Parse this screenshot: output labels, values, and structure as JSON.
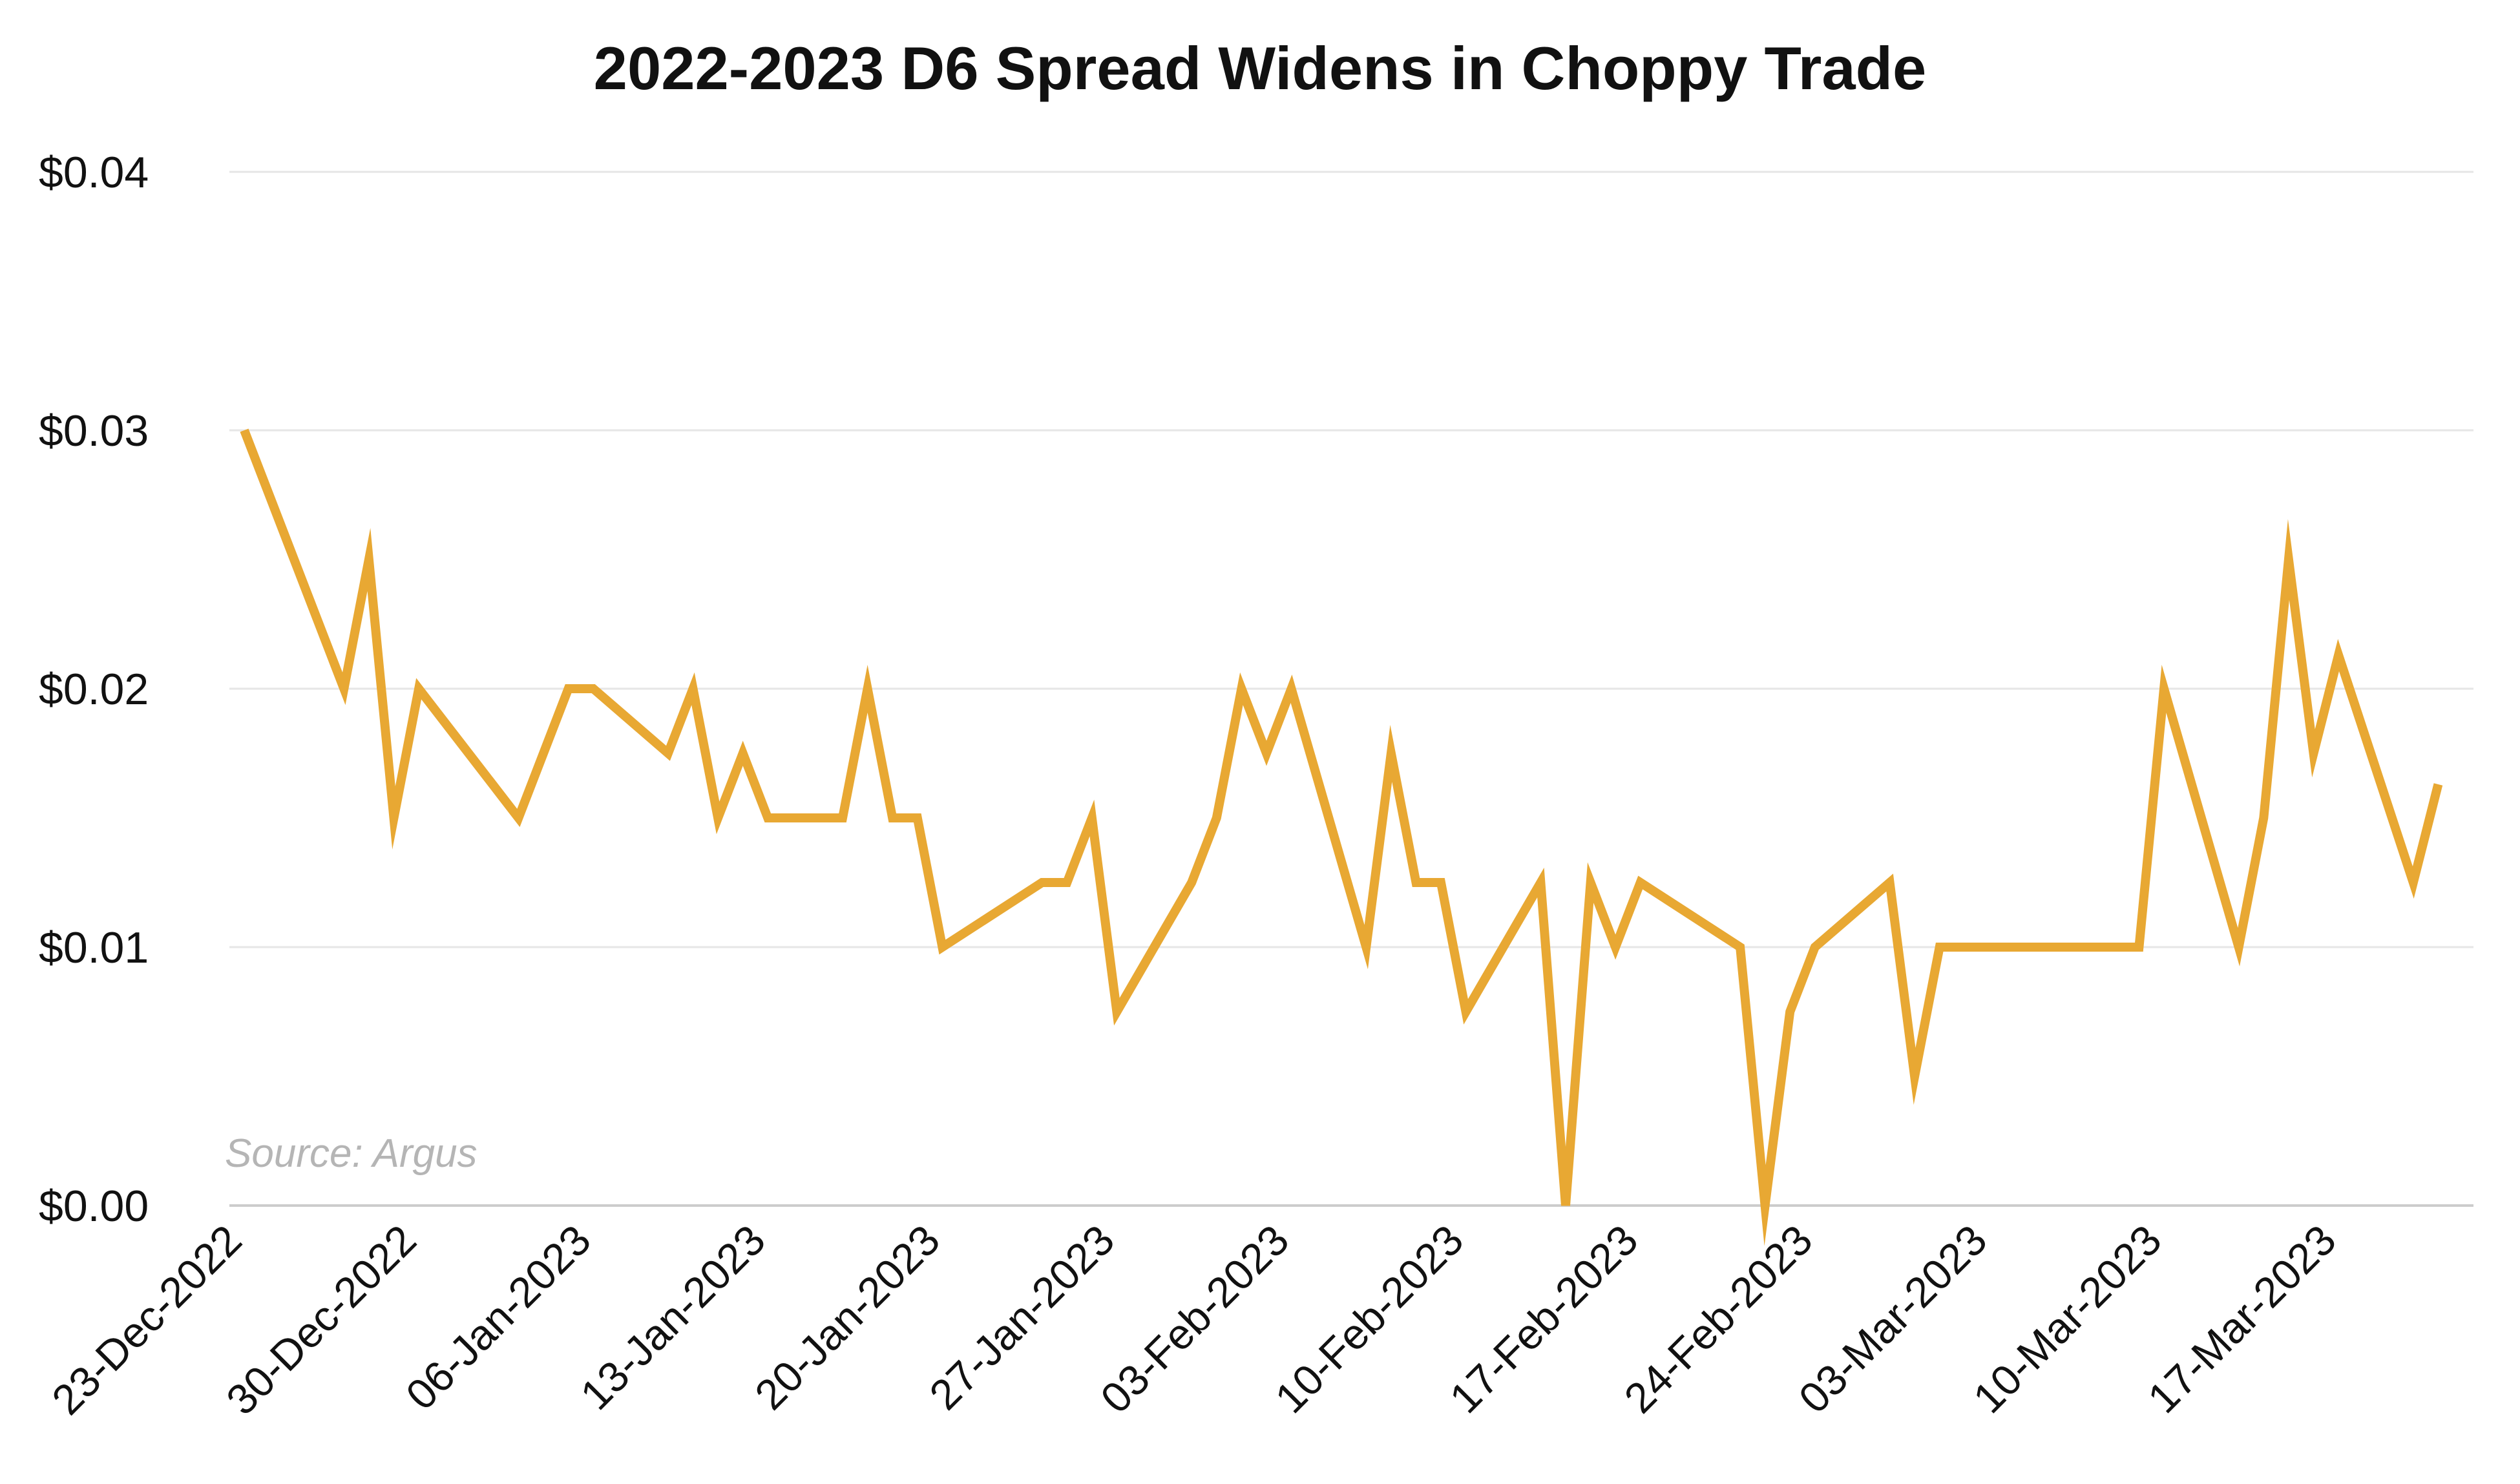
{
  "chart_data": {
    "type": "line",
    "title": "2022-2023 D6 Spread Widens in Choppy Trade",
    "xlabel": "",
    "ylabel": "",
    "source": "Source: Argus",
    "ylim": [
      0,
      0.04
    ],
    "y_ticks": [
      "$0.04",
      "$0.03",
      "$0.02",
      "$0.01",
      "$0.00"
    ],
    "y_tick_values": [
      0.04,
      0.03,
      0.02,
      0.01,
      0.0
    ],
    "x_tick_labels": [
      "23-Dec-2022",
      "30-Dec-2022",
      "06-Jan-2023",
      "13-Jan-2023",
      "20-Jan-2023",
      "27-Jan-2023",
      "03-Feb-2023",
      "10-Feb-2023",
      "17-Feb-2023",
      "24-Feb-2023",
      "03-Mar-2023",
      "10-Mar-2023",
      "17-Mar-2023"
    ],
    "x_tick_dates": [
      "2022-12-23",
      "2022-12-30",
      "2023-01-06",
      "2023-01-13",
      "2023-01-20",
      "2023-01-27",
      "2023-02-03",
      "2023-02-10",
      "2023-02-17",
      "2023-02-24",
      "2023-03-03",
      "2023-03-10",
      "2023-03-17"
    ],
    "xlim": [
      "2022-12-23",
      "2023-03-22"
    ],
    "grid": true,
    "colors": {
      "line": "#E8A833",
      "grid": "#e6e6e6",
      "axis": "#cccccc",
      "source": "#b5b5b5"
    },
    "series": [
      {
        "x": [
          "2022-12-23",
          "2022-12-27",
          "2022-12-28",
          "2022-12-29",
          "2022-12-30",
          "2023-01-03",
          "2023-01-05",
          "2023-01-06",
          "2023-01-09",
          "2023-01-10",
          "2023-01-11",
          "2023-01-12",
          "2023-01-13",
          "2023-01-16",
          "2023-01-17",
          "2023-01-18",
          "2023-01-19",
          "2023-01-20",
          "2023-01-24",
          "2023-01-25",
          "2023-01-26",
          "2023-01-27",
          "2023-01-30",
          "2023-01-31",
          "2023-02-01",
          "2023-02-02",
          "2023-02-03",
          "2023-02-06",
          "2023-02-07",
          "2023-02-08",
          "2023-02-09",
          "2023-02-10",
          "2023-02-13",
          "2023-02-14",
          "2023-02-15",
          "2023-02-16",
          "2023-02-17",
          "2023-02-21",
          "2023-02-22",
          "2023-02-23",
          "2023-02-24",
          "2023-02-27",
          "2023-02-28",
          "2023-03-01",
          "2023-03-02",
          "2023-03-03",
          "2023-03-09",
          "2023-03-10",
          "2023-03-13",
          "2023-03-14",
          "2023-03-15",
          "2023-03-16",
          "2023-03-17",
          "2023-03-20",
          "2023-03-21"
        ],
        "values": [
          0.03,
          0.02,
          0.025,
          0.015,
          0.02,
          0.015,
          0.02,
          0.02,
          0.0175,
          0.02,
          0.015,
          0.0175,
          0.015,
          0.015,
          0.02,
          0.015,
          0.015,
          0.01,
          0.0125,
          0.0125,
          0.015,
          0.0075,
          0.0125,
          0.015,
          0.02,
          0.0175,
          0.02,
          0.01,
          0.0175,
          0.0125,
          0.0125,
          0.0075,
          0.0125,
          0.0,
          0.0125,
          0.01,
          0.0125,
          0.01,
          0.0,
          0.0075,
          0.01,
          0.0125,
          0.005,
          0.01,
          0.01,
          0.01,
          0.01,
          0.02,
          0.01,
          0.015,
          0.025,
          0.0175,
          0.0213,
          0.0125,
          0.0163
        ]
      }
    ]
  }
}
